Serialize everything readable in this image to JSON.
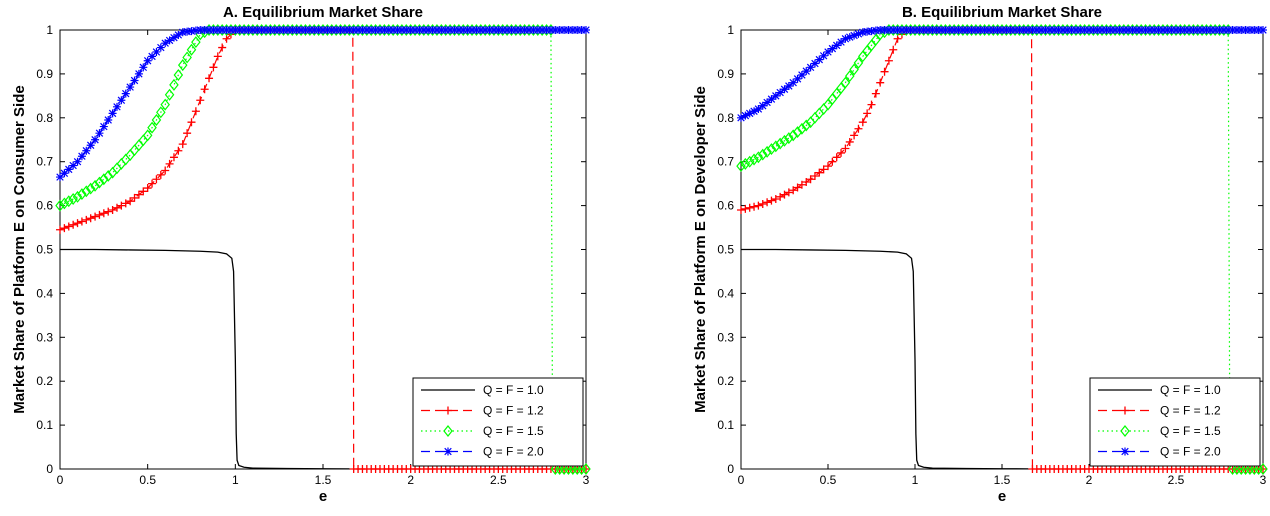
{
  "chart_data": [
    {
      "type": "line",
      "title": "A. Equilibrium Market Share",
      "xlabel": "e",
      "ylabel": "Market Share of Platform E on Consumer Side",
      "xlim": [
        0,
        3
      ],
      "ylim": [
        0,
        1
      ],
      "x_ticks": [
        "0",
        "0.5",
        "1",
        "1.5",
        "2",
        "2.5",
        "3"
      ],
      "y_ticks": [
        "0",
        "0.1",
        "0.2",
        "0.3",
        "0.4",
        "0.5",
        "0.6",
        "0.7",
        "0.8",
        "0.9",
        "1"
      ],
      "grid": false,
      "legend": "bottom-right",
      "series": [
        {
          "name": "Q = F = 1.0",
          "color": "#000000",
          "dash": "solid",
          "marker": "none",
          "x": [
            0,
            0.2,
            0.4,
            0.6,
            0.8,
            0.9,
            0.95,
            0.98,
            0.99,
            1.0,
            1.005,
            1.01,
            1.02,
            1.05,
            1.1,
            1.3,
            1.5,
            1.65
          ],
          "y": [
            0.5,
            0.5,
            0.499,
            0.498,
            0.496,
            0.494,
            0.49,
            0.48,
            0.45,
            0.25,
            0.08,
            0.02,
            0.008,
            0.004,
            0.002,
            0.001,
            0.0005,
            0.0003
          ]
        },
        {
          "name": "Q = F = 1.2",
          "color": "#ff0000",
          "dash": "dashed",
          "marker": "plus",
          "x": [
            0,
            0.1,
            0.2,
            0.3,
            0.4,
            0.5,
            0.6,
            0.7,
            0.8,
            0.85,
            0.9,
            0.95,
            1.0,
            1.2,
            1.4,
            1.6,
            1.67,
            1.675,
            1.7,
            2.0,
            2.5,
            3.0
          ],
          "y": [
            0.545,
            0.56,
            0.575,
            0.59,
            0.61,
            0.64,
            0.68,
            0.74,
            0.84,
            0.89,
            0.94,
            0.98,
            1.0,
            1.0,
            1.0,
            1.0,
            1.0,
            0,
            0,
            0,
            0,
            0
          ]
        },
        {
          "name": "Q = F = 1.5",
          "color": "#00ff00",
          "dash": "dotted",
          "marker": "diamond",
          "x": [
            0,
            0.1,
            0.2,
            0.3,
            0.4,
            0.5,
            0.6,
            0.7,
            0.8,
            0.85,
            0.9,
            1.0,
            1.5,
            2.0,
            2.5,
            2.8,
            2.81,
            2.85,
            2.9,
            3.0
          ],
          "y": [
            0.6,
            0.62,
            0.645,
            0.675,
            0.715,
            0.76,
            0.83,
            0.92,
            0.99,
            1.0,
            1.0,
            1.0,
            1.0,
            1.0,
            1.0,
            1.0,
            0,
            0,
            0,
            0
          ]
        },
        {
          "name": "Q = F = 2.0",
          "color": "#0000ff",
          "dash": "dashed",
          "marker": "asterisk",
          "x": [
            0,
            0.1,
            0.2,
            0.3,
            0.4,
            0.5,
            0.6,
            0.7,
            0.8,
            0.9,
            1.0,
            1.5,
            2.0,
            2.5,
            3.0
          ],
          "y": [
            0.665,
            0.7,
            0.75,
            0.81,
            0.87,
            0.93,
            0.97,
            0.995,
            1.0,
            1.0,
            1.0,
            1.0,
            1.0,
            1.0,
            1.0
          ]
        }
      ]
    },
    {
      "type": "line",
      "title": "B. Equilibrium Market Share",
      "xlabel": "e",
      "ylabel": "Market Share of Platform E on Developer Side",
      "xlim": [
        0,
        3
      ],
      "ylim": [
        0,
        1
      ],
      "x_ticks": [
        "0",
        "0.5",
        "1",
        "1.5",
        "2",
        "2.5",
        "3"
      ],
      "y_ticks": [
        "0",
        "0.1",
        "0.2",
        "0.3",
        "0.4",
        "0.5",
        "0.6",
        "0.7",
        "0.8",
        "0.9",
        "1"
      ],
      "grid": false,
      "legend": "bottom-right",
      "series": [
        {
          "name": "Q = F = 1.0",
          "color": "#000000",
          "dash": "solid",
          "marker": "none",
          "x": [
            0,
            0.2,
            0.4,
            0.6,
            0.8,
            0.9,
            0.95,
            0.98,
            0.99,
            1.0,
            1.005,
            1.01,
            1.02,
            1.05,
            1.1,
            1.3,
            1.5,
            1.65
          ],
          "y": [
            0.5,
            0.5,
            0.499,
            0.498,
            0.496,
            0.494,
            0.49,
            0.48,
            0.45,
            0.25,
            0.08,
            0.02,
            0.008,
            0.004,
            0.002,
            0.001,
            0.0005,
            0.0003
          ]
        },
        {
          "name": "Q = F = 1.2",
          "color": "#ff0000",
          "dash": "dashed",
          "marker": "plus",
          "x": [
            0,
            0.1,
            0.2,
            0.3,
            0.4,
            0.5,
            0.6,
            0.7,
            0.75,
            0.8,
            0.85,
            0.9,
            0.95,
            1.0,
            1.2,
            1.4,
            1.6,
            1.67,
            1.675,
            1.7,
            2.0,
            2.5,
            3.0
          ],
          "y": [
            0.59,
            0.6,
            0.615,
            0.635,
            0.66,
            0.69,
            0.73,
            0.79,
            0.83,
            0.88,
            0.93,
            0.98,
            1.0,
            1.0,
            1.0,
            1.0,
            1.0,
            1.0,
            0,
            0,
            0,
            0,
            0
          ]
        },
        {
          "name": "Q = F = 1.5",
          "color": "#00ff00",
          "dash": "dotted",
          "marker": "diamond",
          "x": [
            0,
            0.1,
            0.2,
            0.3,
            0.4,
            0.5,
            0.6,
            0.7,
            0.8,
            0.85,
            0.9,
            1.0,
            1.5,
            2.0,
            2.5,
            2.8,
            2.81,
            2.85,
            2.9,
            3.0
          ],
          "y": [
            0.69,
            0.71,
            0.735,
            0.76,
            0.79,
            0.83,
            0.88,
            0.94,
            0.99,
            1.0,
            1.0,
            1.0,
            1.0,
            1.0,
            1.0,
            1.0,
            0,
            0,
            0,
            0
          ]
        },
        {
          "name": "Q = F = 2.0",
          "color": "#0000ff",
          "dash": "dashed",
          "marker": "asterisk",
          "x": [
            0,
            0.1,
            0.2,
            0.3,
            0.4,
            0.5,
            0.6,
            0.7,
            0.8,
            0.9,
            1.0,
            1.5,
            2.0,
            2.5,
            3.0
          ],
          "y": [
            0.8,
            0.82,
            0.85,
            0.88,
            0.915,
            0.95,
            0.98,
            0.995,
            1.0,
            1.0,
            1.0,
            1.0,
            1.0,
            1.0,
            1.0
          ]
        }
      ]
    }
  ]
}
